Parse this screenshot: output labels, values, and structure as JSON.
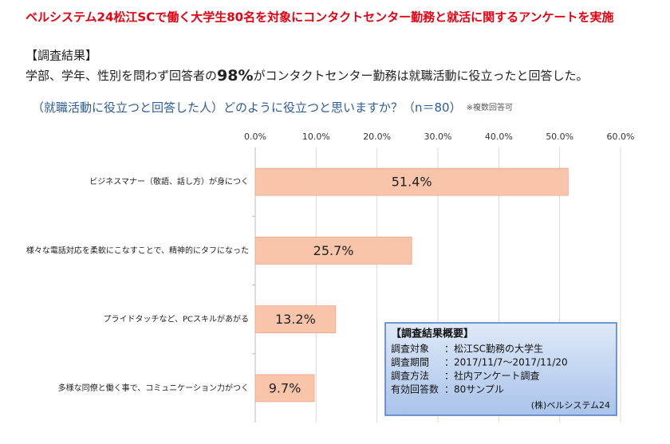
{
  "header": {
    "title": "ベルシステム24松江SCで働く大学生80名を対象にコンタクトセンター勤務と就活に関するアンケートを実施",
    "section": "【調査結果】",
    "summary_before": "学部、学年、性別を問わず回答者の",
    "summary_highlight": "98%",
    "summary_after": "がコンタクトセンター勤務は就職活動に役立ったと回答した。"
  },
  "chart_data": {
    "type": "hbar",
    "title": "（就職活動に役立つと回答した人）どのように役立つと思いますか？（n＝80）",
    "note": "※複数回答可",
    "categories": [
      "ビジネスマナー（敬語、話し方）が身につく",
      "様々な電話対応を柔軟にこなすことで、精神的にタフになった",
      "プライドタッチなど、PCスキルがあがる",
      "多様な同僚と働く事で、コミュニケーション力がつく"
    ],
    "values": [
      51.4,
      25.7,
      13.2,
      9.7
    ],
    "value_labels": [
      "51.4%",
      "25.7%",
      "13.2%",
      "9.7%"
    ],
    "color": "#f8c4aa",
    "xlim": [
      0,
      60
    ],
    "xticks": [
      {
        "value": 0,
        "label": "0.0%"
      },
      {
        "value": 10,
        "label": "10.0%"
      },
      {
        "value": 20,
        "label": "20.0%"
      },
      {
        "value": 30,
        "label": "30.0%"
      },
      {
        "value": 40,
        "label": "40.0%"
      },
      {
        "value": 50,
        "label": "50.0%"
      },
      {
        "value": 60,
        "label": "60.0%"
      }
    ],
    "grid": true
  },
  "summary_box": {
    "title": "【調査結果概要】",
    "rows": [
      [
        "調査対象",
        "：松江SC勤務の大学生"
      ],
      [
        "調査期間",
        "：2017/11/7～2017/11/20"
      ],
      [
        "調査方法",
        "：社内アンケート調査"
      ],
      [
        "有効回答数",
        "：80サンプル"
      ]
    ],
    "footer": "(株)ベルシステム24"
  }
}
